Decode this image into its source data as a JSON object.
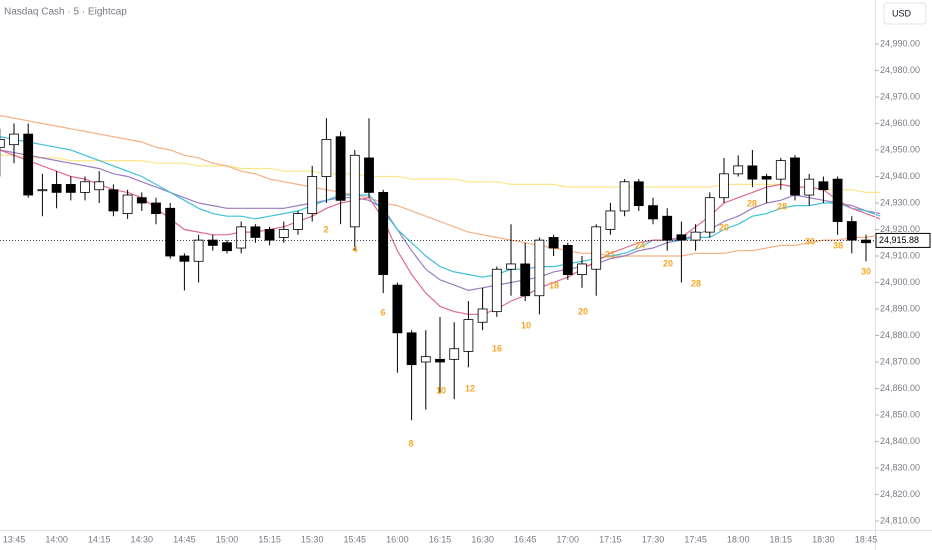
{
  "chart_data": {
    "type": "candlestick",
    "title": "Nasdaq Cash · 5 · Eightcap",
    "currency": "USD",
    "categories": [
      null,
      "13:45",
      null,
      null,
      "14:00",
      null,
      null,
      "14:15",
      null,
      null,
      "14:30",
      null,
      null,
      "14:45",
      null,
      null,
      "15:00",
      null,
      null,
      "15:15",
      null,
      null,
      "15:30",
      null,
      null,
      "15:45",
      null,
      null,
      "16:00",
      null,
      null,
      "16:15",
      null,
      null,
      "16:30",
      null,
      null,
      "16:45",
      null,
      null,
      "17:00",
      null,
      null,
      "17:15",
      null,
      null,
      "17:30",
      null,
      null,
      "17:45",
      null,
      null,
      "18:00",
      null,
      null,
      "18:15",
      null,
      null,
      "18:30",
      null,
      null,
      "18:45",
      null
    ],
    "open": [
      24951,
      24952,
      24956,
      24935,
      24937,
      24937,
      24934,
      24935,
      24935,
      24926,
      24932,
      24930,
      24928,
      24910,
      24908,
      24916,
      24915,
      24913,
      24921,
      24920,
      24917,
      24920,
      24926,
      24940,
      24955,
      24921,
      24947,
      24934,
      24899,
      24881,
      24870,
      24871,
      24871,
      24874,
      24885,
      24889,
      24905,
      24907,
      24895,
      24917,
      24914,
      24903,
      24905,
      24920,
      24927,
      24938,
      24929,
      24925,
      24918,
      24916,
      24919,
      24932,
      24941,
      24944,
      24940,
      24939,
      24947,
      24933,
      24938,
      24939,
      24923,
      24916,
      24915
    ],
    "high": [
      24958,
      24960,
      24960,
      24941,
      24942,
      24940,
      24940,
      24942,
      24937,
      24935,
      24934,
      24932,
      24930,
      24911,
      24918,
      24918,
      24916,
      24923,
      24922,
      24921,
      24923,
      24927,
      24944,
      24962,
      24957,
      24950,
      24962,
      24935,
      24900,
      24882,
      24882,
      24887,
      24885,
      24893,
      24898,
      24906,
      24922,
      24915,
      24917,
      24918,
      24915,
      24910,
      24922,
      24930,
      24939,
      24939,
      24932,
      24928,
      24923,
      24922,
      24934,
      24947,
      24948,
      24950,
      24941,
      24947,
      24948,
      24941,
      24940,
      24940,
      24925,
      24918,
      24920
    ],
    "low": [
      24940,
      24945,
      24932,
      24925,
      24928,
      24931,
      24931,
      24930,
      24925,
      24924,
      24927,
      24922,
      24909,
      24897,
      24900,
      24912,
      24911,
      24911,
      24915,
      24914,
      24915,
      24918,
      24923,
      24930,
      24922,
      24912,
      24932,
      24896,
      24866,
      24848,
      24852,
      24858,
      24856,
      24868,
      24882,
      24887,
      24895,
      24893,
      24888,
      24910,
      24901,
      24898,
      24895,
      24918,
      24925,
      24927,
      24922,
      24912,
      24900,
      24912,
      24917,
      24930,
      24940,
      24936,
      24930,
      24935,
      24931,
      24929,
      24930,
      24918,
      24911,
      24908,
      24903
    ],
    "close": [
      24954,
      24956,
      24933,
      24935,
      24934,
      24934,
      24938,
      24938,
      24927,
      24933,
      24930,
      24926,
      24910,
      24908,
      24916,
      24914,
      24912,
      24921,
      24917,
      24916,
      24920,
      24926,
      24940,
      24954,
      24931,
      24948,
      24934,
      24903,
      24881,
      24869,
      24872,
      24870,
      24875,
      24886,
      24890,
      24905,
      24907,
      24895,
      24916,
      24913,
      24903,
      24907,
      24921,
      24927,
      24938,
      24929,
      24924,
      24916,
      24916,
      24919,
      24932,
      24941,
      24944,
      24939,
      24939,
      24946,
      24933,
      24939,
      24935,
      24923,
      24916,
      24915,
      24916
    ],
    "up_color": "#ffffff",
    "down_color": "#000000",
    "lines": [
      {
        "color": "#fde68a",
        "values": [
          24948,
          24948,
          24947,
          24947,
          24947,
          24946,
          24946,
          24946,
          24946,
          24946,
          24946,
          24945,
          24945,
          24945,
          24944,
          24944,
          24944,
          24943,
          24943,
          24943,
          24942,
          24942,
          24942,
          24941,
          24941,
          24941,
          24940,
          24940,
          24940,
          24939,
          24939,
          24939,
          24939,
          24938,
          24938,
          24938,
          24937,
          24937,
          24937,
          24937,
          24936,
          24936,
          24936,
          24936,
          24936,
          24936,
          24936,
          24936,
          24936,
          24936,
          24936,
          24937,
          24937,
          24937,
          24937,
          24937,
          24936,
          24936,
          24935,
          24935,
          24935,
          24934,
          24934
        ]
      },
      {
        "color": "#f4b183",
        "values": [
          24963,
          24962,
          24961,
          24960,
          24959,
          24958,
          24957,
          24956,
          24955,
          24954,
          24953,
          24951,
          24950,
          24948,
          24947,
          24945,
          24944,
          24942,
          24941,
          24939,
          24938,
          24937,
          24936,
          24935,
          24934,
          24933,
          24932,
          24930,
          24929,
          24927,
          24925,
          24923,
          24921,
          24919,
          24918,
          24917,
          24916,
          24915,
          24914,
          24913,
          24912,
          24911,
          24911,
          24910,
          24910,
          24910,
          24910,
          24910,
          24910,
          24911,
          24911,
          24911,
          24912,
          24912,
          24913,
          24914,
          24914,
          24915,
          24916,
          24916,
          24917,
          24917,
          24918
        ]
      },
      {
        "color": "#9c7cc0",
        "values": [
          24950,
          24949,
          24948,
          24947,
          24946,
          24945,
          24944,
          24943,
          24941,
          24940,
          24938,
          24936,
          24934,
          24932,
          24930,
          24929,
          24928,
          24928,
          24928,
          24928,
          24928,
          24929,
          24930,
          24931,
          24932,
          24932,
          24931,
          24928,
          24920,
          24912,
          24905,
          24901,
          24899,
          24897,
          24898,
          24899,
          24900,
          24901,
          24902,
          24904,
          24905,
          24906,
          24907,
          24909,
          24910,
          24912,
          24913,
          24915,
          24916,
          24918,
          24920,
          24923,
          24925,
          24928,
          24930,
          24931,
          24933,
          24932,
          24931,
          24930,
          24929,
          24927,
          24926
        ]
      },
      {
        "color": "#3fc1d9",
        "values": [
          24955,
          24954,
          24953,
          24952,
          24951,
          24950,
          24948,
          24946,
          24944,
          24942,
          24940,
          24937,
          24934,
          24931,
          24928,
          24926,
          24925,
          24925,
          24924,
          24925,
          24926,
          24927,
          24929,
          24931,
          24933,
          24933,
          24933,
          24927,
          24920,
          24915,
          24910,
          24906,
          24904,
          24903,
          24902,
          24903,
          24905,
          24905,
          24906,
          24906,
          24907,
          24908,
          24909,
          24910,
          24911,
          24913,
          24916,
          24916,
          24916,
          24917,
          24917,
          24920,
          24922,
          24925,
          24926,
          24928,
          24929,
          24929,
          24930,
          24930,
          24928,
          24927,
          24925
        ]
      },
      {
        "color": "#e06a8e",
        "values": [
          24950,
          24948,
          24946,
          24944,
          24942,
          24940,
          24939,
          24937,
          24935,
          24934,
          24932,
          24928,
          24924,
          24920,
          24919,
          24918,
          24918,
          24919,
          24919,
          24920,
          24921,
          24923,
          24925,
          24928,
          24930,
          24931,
          24932,
          24924,
          24912,
          24903,
          24896,
          24891,
          24889,
          24888,
          24888,
          24890,
          24893,
          24895,
          24898,
          24900,
          24902,
          24905,
          24908,
          24911,
          24913,
          24915,
          24916,
          24916,
          24917,
          24921,
          24925,
          24930,
          24932,
          24934,
          24936,
          24937,
          24936,
          24936,
          24935,
          24931,
          24928,
          24926,
          24924
        ]
      }
    ],
    "annotations": [
      "2",
      "4",
      "6",
      "8",
      "10",
      "12",
      "16",
      "10",
      "18",
      "20",
      "21",
      "24",
      "20",
      "28",
      "20",
      "28",
      "28",
      "30",
      "38",
      "30"
    ],
    "annotation_color": "#f5a623",
    "last_price": {
      "value": 24915.88,
      "label": "24,915.88"
    },
    "ylim": [
      24806.6,
      25006.6
    ],
    "yticks": [
      {
        "value": 24810,
        "label": "24,810.00"
      },
      {
        "value": 24820,
        "label": "24,820.00"
      },
      {
        "value": 24830,
        "label": "24,830.00"
      },
      {
        "value": 24840,
        "label": "24,840.00"
      },
      {
        "value": 24850,
        "label": "24,850.00"
      },
      {
        "value": 24860,
        "label": "24,860.00"
      },
      {
        "value": 24870,
        "label": "24,870.00"
      },
      {
        "value": 24880,
        "label": "24,880.00"
      },
      {
        "value": 24890,
        "label": "24,890.00"
      },
      {
        "value": 24900,
        "label": "24,900.00"
      },
      {
        "value": 24910,
        "label": "24,910.00"
      },
      {
        "value": 24920,
        "label": "24,920.00"
      },
      {
        "value": 24930,
        "label": "24,930.00"
      },
      {
        "value": 24940,
        "label": "24,940.00"
      },
      {
        "value": 24950,
        "label": "24,950.00"
      },
      {
        "value": 24960,
        "label": "24,960.00"
      },
      {
        "value": 24970,
        "label": "24,970.00"
      },
      {
        "value": 24980,
        "label": "24,980.00"
      },
      {
        "value": 24990,
        "label": "24,990.00"
      }
    ]
  }
}
